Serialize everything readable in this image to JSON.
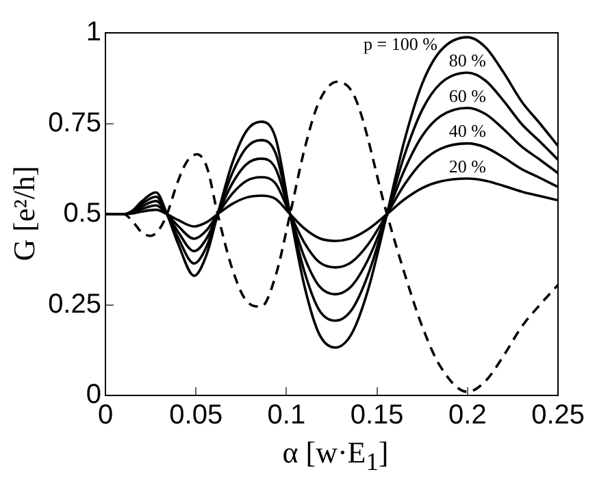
{
  "chart_data": {
    "type": "line",
    "xlabel": "α [w·E$_{1}$]",
    "ylabel": "G [e²/h]",
    "xlim": [
      0,
      0.25
    ],
    "xticks": [
      0,
      0.05,
      0.1,
      0.15,
      0.2,
      0.25
    ],
    "ylim": [
      0,
      1
    ],
    "yticks": [
      0,
      0.25,
      0.5,
      0.75,
      1
    ],
    "grid": false,
    "legend": false,
    "marker": "none",
    "x": [
      0,
      0.01,
      0.015,
      0.02,
      0.028,
      0.034,
      0.04,
      0.049,
      0.056,
      0.062,
      0.07,
      0.078,
      0.086,
      0.094,
      0.102,
      0.11,
      0.118,
      0.127,
      0.136,
      0.145,
      0.1555,
      0.165,
      0.175,
      0.185,
      0.2,
      0.21,
      0.22,
      0.23,
      0.24,
      0.25
    ],
    "series": [
      {
        "name": "20 %",
        "color": "#000000",
        "line_style": "solid",
        "values": [
          0.5,
          0.5,
          0.502,
          0.507,
          0.512,
          0.5,
          0.484,
          0.466,
          0.478,
          0.5,
          0.528,
          0.546,
          0.551,
          0.542,
          0.5,
          0.46,
          0.434,
          0.426,
          0.434,
          0.458,
          0.5,
          0.54,
          0.572,
          0.59,
          0.598,
          0.592,
          0.578,
          0.562,
          0.55,
          0.538
        ]
      },
      {
        "name": "40 %",
        "color": "#000000",
        "line_style": "solid",
        "values": [
          0.5,
          0.5,
          0.504,
          0.514,
          0.524,
          0.5,
          0.468,
          0.432,
          0.456,
          0.5,
          0.556,
          0.592,
          0.602,
          0.584,
          0.5,
          0.42,
          0.368,
          0.353,
          0.368,
          0.416,
          0.5,
          0.58,
          0.644,
          0.68,
          0.695,
          0.684,
          0.656,
          0.624,
          0.6,
          0.575
        ]
      },
      {
        "name": "60 %",
        "color": "#000000",
        "line_style": "solid",
        "values": [
          0.5,
          0.5,
          0.506,
          0.521,
          0.536,
          0.5,
          0.452,
          0.398,
          0.434,
          0.5,
          0.584,
          0.638,
          0.653,
          0.626,
          0.5,
          0.38,
          0.302,
          0.279,
          0.302,
          0.374,
          0.5,
          0.62,
          0.716,
          0.77,
          0.793,
          0.776,
          0.734,
          0.686,
          0.65,
          0.613
        ]
      },
      {
        "name": "80 %",
        "color": "#000000",
        "line_style": "solid",
        "values": [
          0.5,
          0.5,
          0.508,
          0.528,
          0.548,
          0.5,
          0.436,
          0.364,
          0.412,
          0.5,
          0.612,
          0.684,
          0.704,
          0.668,
          0.5,
          0.34,
          0.236,
          0.206,
          0.236,
          0.332,
          0.5,
          0.66,
          0.788,
          0.86,
          0.89,
          0.868,
          0.812,
          0.748,
          0.7,
          0.65
        ]
      },
      {
        "name": "p = 100 %",
        "color": "#000000",
        "line_style": "solid",
        "values": [
          0.5,
          0.5,
          0.51,
          0.535,
          0.56,
          0.5,
          0.42,
          0.33,
          0.39,
          0.5,
          0.64,
          0.73,
          0.755,
          0.71,
          0.5,
          0.3,
          0.17,
          0.132,
          0.17,
          0.29,
          0.5,
          0.7,
          0.86,
          0.95,
          0.988,
          0.96,
          0.89,
          0.81,
          0.75,
          0.688
        ]
      },
      {
        "color": "#000000",
        "line_style": "dashed",
        "x": [
          0,
          0.01,
          0.015,
          0.02,
          0.025,
          0.03,
          0.034,
          0.04,
          0.045,
          0.0506,
          0.056,
          0.062,
          0.07,
          0.078,
          0.086,
          0.094,
          0.102,
          0.11,
          0.118,
          0.128,
          0.138,
          0.1555,
          0.165,
          0.175,
          0.185,
          0.2,
          0.21,
          0.22,
          0.23,
          0.24,
          0.25
        ],
        "values": [
          0.5,
          0.5,
          0.48,
          0.45,
          0.44,
          0.46,
          0.5,
          0.59,
          0.645,
          0.665,
          0.63,
          0.5,
          0.35,
          0.26,
          0.245,
          0.33,
          0.5,
          0.68,
          0.81,
          0.865,
          0.82,
          0.5,
          0.34,
          0.19,
          0.08,
          0.01,
          0.04,
          0.11,
          0.19,
          0.25,
          0.305
        ]
      }
    ]
  }
}
